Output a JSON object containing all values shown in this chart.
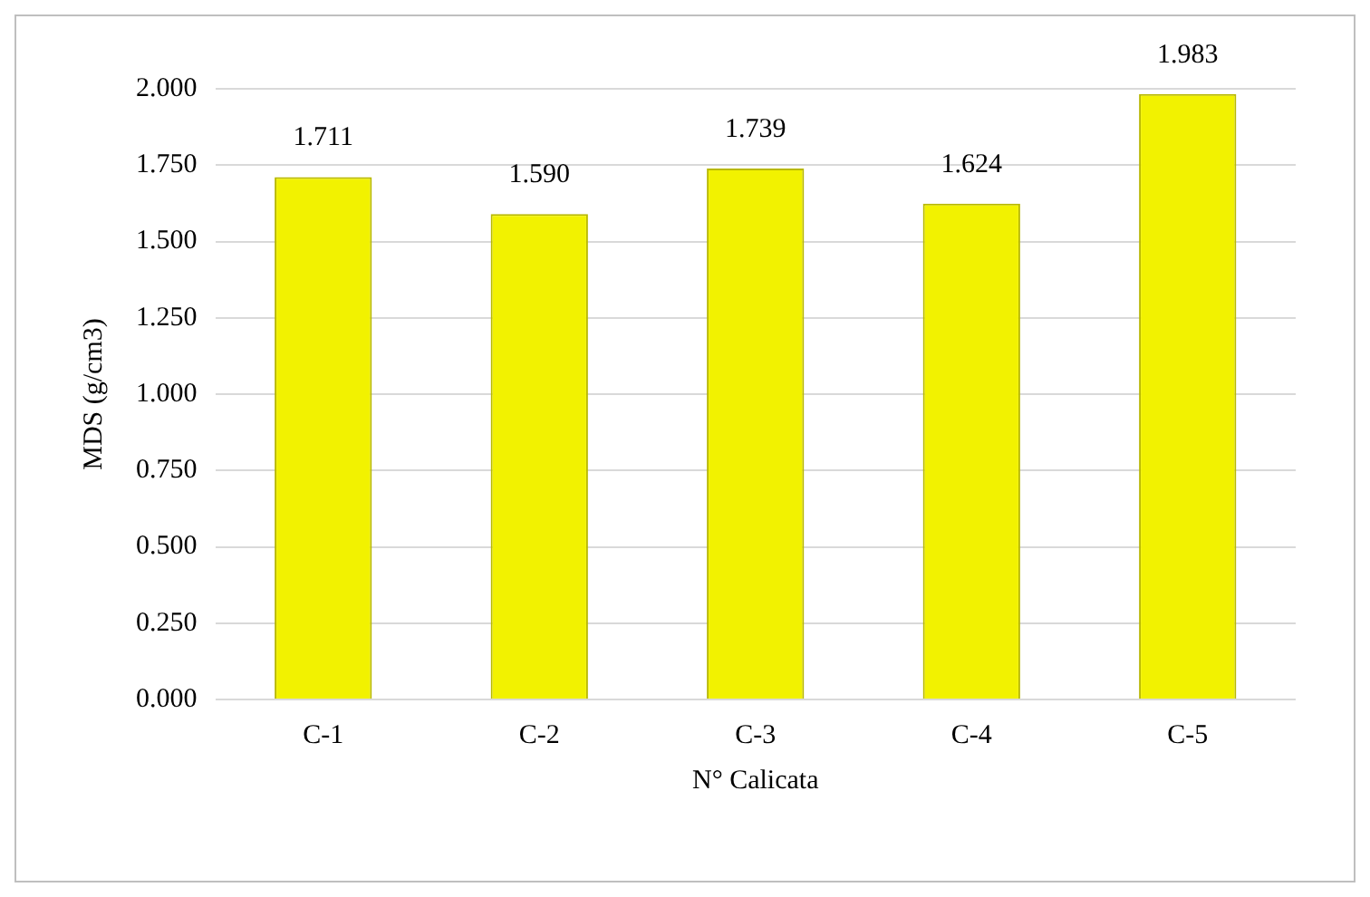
{
  "chart_data": {
    "type": "bar",
    "xlabel": "N° Calicata",
    "ylabel": "MDS (g/cm3)",
    "categories": [
      "C-1",
      "C-2",
      "C-3",
      "C-4",
      "C-5"
    ],
    "values": [
      1.711,
      1.59,
      1.739,
      1.624,
      1.983
    ],
    "value_labels": [
      "1.711",
      "1.590",
      "1.739",
      "1.624",
      "1.983"
    ],
    "color": "#f2f200",
    "ylim": [
      0,
      2
    ],
    "yticks": [
      {
        "value": 0,
        "label": "0.000"
      },
      {
        "value": 0.25,
        "label": "0.250"
      },
      {
        "value": 0.5,
        "label": "0.500"
      },
      {
        "value": 0.75,
        "label": "0.750"
      },
      {
        "value": 1,
        "label": "1.000"
      },
      {
        "value": 1.25,
        "label": "1.250"
      },
      {
        "value": 1.5,
        "label": "1.500"
      },
      {
        "value": 1.75,
        "label": "1.750"
      },
      {
        "value": 2,
        "label": "2.000"
      }
    ],
    "grid": "y",
    "legend": false
  }
}
